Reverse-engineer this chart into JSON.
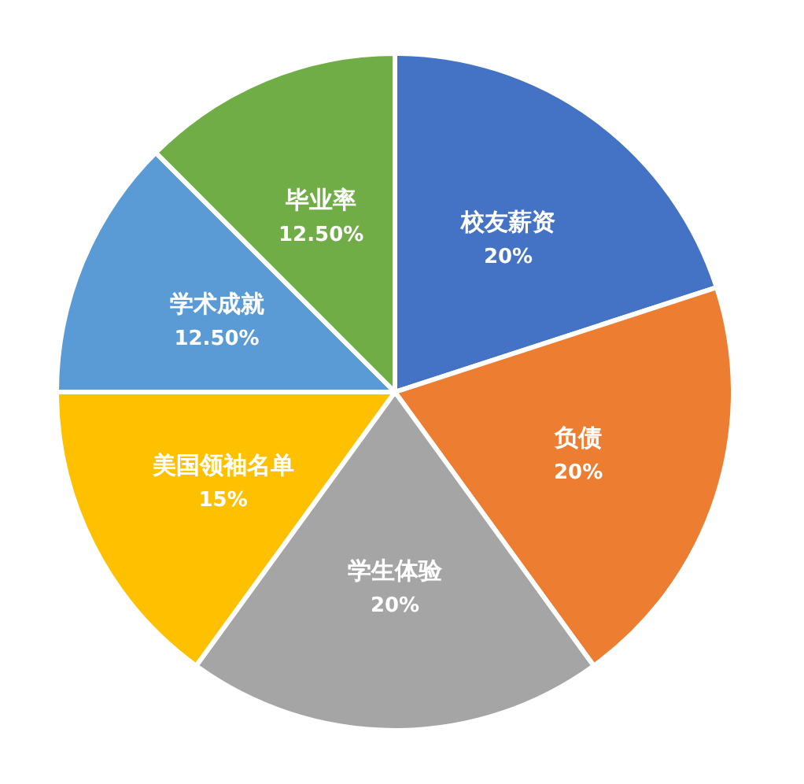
{
  "chart_data": {
    "type": "pie",
    "categories": [
      "校友薪资",
      "负债",
      "学生体验",
      "美国领袖名单",
      "学术成就",
      "毕业率"
    ],
    "values": [
      20,
      20,
      20,
      15,
      12.5,
      12.5
    ],
    "value_labels": [
      "20%",
      "20%",
      "20%",
      "15%",
      "12.50%",
      "12.50%"
    ],
    "colors": [
      "#4472c4",
      "#ed7d31",
      "#a5a5a5",
      "#ffc000",
      "#5b9bd5",
      "#70ad47"
    ]
  }
}
